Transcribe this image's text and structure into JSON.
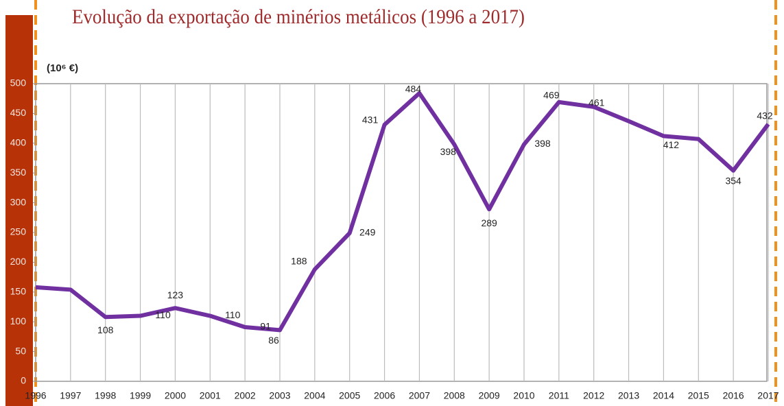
{
  "chart_data": {
    "type": "line",
    "title": "Evolução da exportação de minérios metálicos (1996 a 2017)",
    "y_label": "(10⁶ €)",
    "categories": [
      "1996",
      "1997",
      "1998",
      "1999",
      "2000",
      "2001",
      "2002",
      "2003",
      "2004",
      "2005",
      "2006",
      "2007",
      "2008",
      "2009",
      "2010",
      "2011",
      "2012",
      "2013",
      "2014",
      "2015",
      "2016",
      "2017"
    ],
    "series": [
      {
        "name": "Exportação",
        "color": "#7030a0",
        "values": [
          158,
          154,
          108,
          110,
          123,
          110,
          91,
          86,
          188,
          249,
          431,
          484,
          398,
          289,
          398,
          469,
          461,
          437,
          412,
          407,
          354,
          432
        ],
        "value_labels": [
          null,
          null,
          "108",
          "110",
          "123",
          "110",
          "91",
          "86",
          "188",
          "249",
          "431",
          "484",
          "398",
          "289",
          "398",
          "469",
          "461",
          null,
          "412",
          null,
          "354",
          "432"
        ]
      }
    ],
    "ylim": [
      0,
      500
    ],
    "yticks": [
      0,
      50,
      100,
      150,
      200,
      250,
      300,
      350,
      400,
      450,
      500
    ],
    "grid": true
  }
}
